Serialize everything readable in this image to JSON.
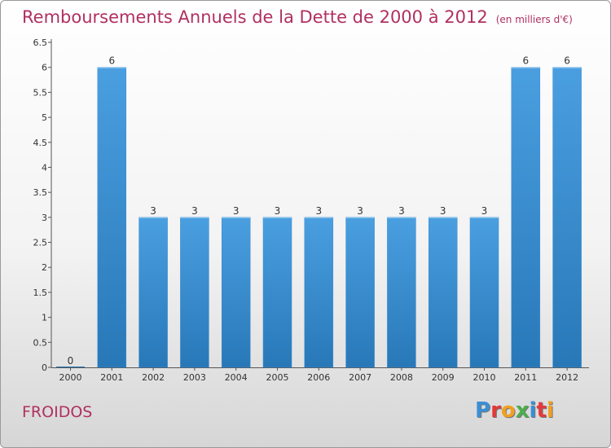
{
  "header": {
    "title": "Remboursements Annuels de la Dette de 2000 à 2012",
    "unit": "(en milliers d'€)"
  },
  "footer": {
    "commune": "FROIDOS",
    "logo_text": "Proxiti",
    "logo_colors": [
      "#3a8fd6",
      "#e23a3a",
      "#f0a020",
      "#4cae4c",
      "#3a8fd6",
      "#e23a3a",
      "#f0a020"
    ]
  },
  "chart_data": {
    "type": "bar",
    "title": "Remboursements Annuels de la Dette de 2000 à 2012",
    "xlabel": "",
    "ylabel": "",
    "categories": [
      "2000",
      "2001",
      "2002",
      "2003",
      "2004",
      "2005",
      "2006",
      "2007",
      "2008",
      "2009",
      "2010",
      "2011",
      "2012"
    ],
    "values": [
      0,
      6,
      3,
      3,
      3,
      3,
      3,
      3,
      3,
      3,
      3,
      6,
      6
    ],
    "data_labels": [
      "0",
      "6",
      "3",
      "3",
      "3",
      "3",
      "3",
      "3",
      "3",
      "3",
      "3",
      "6",
      "6"
    ],
    "yticks": [
      "0",
      "0.5",
      "1",
      "1.5",
      "2",
      "2.5",
      "3",
      "3.5",
      "4",
      "4.5",
      "5",
      "5.5",
      "6",
      "6.5"
    ],
    "ylim": [
      0,
      6.5
    ],
    "grid": false,
    "bar_color": "#4a9fe0",
    "bar_color_dark": "#2878b8"
  }
}
